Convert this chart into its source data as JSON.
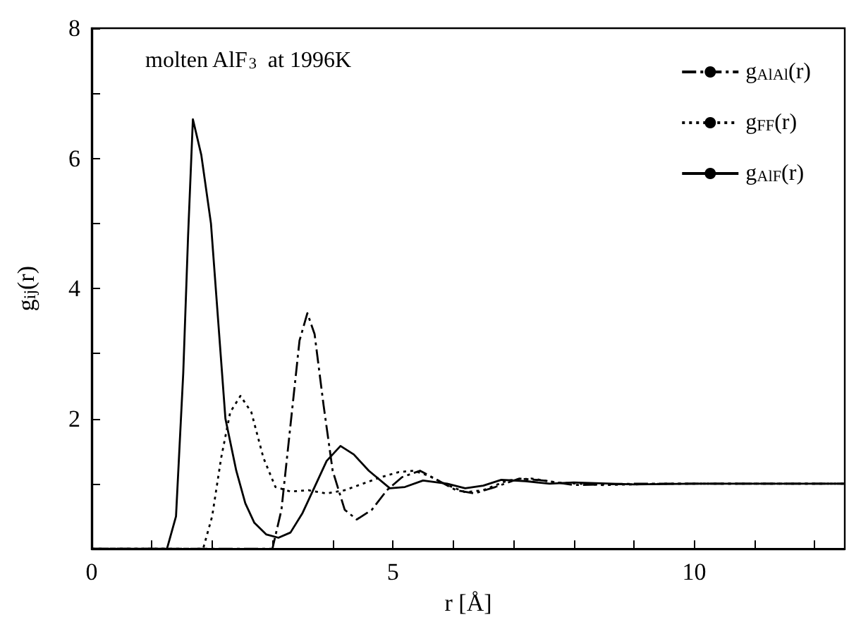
{
  "chart_data": {
    "type": "line",
    "title": "molten AlF$_{3}$  at 1996K",
    "xlabel": "r [Å]",
    "ylabel": "g$_{ij}$(r)",
    "xlim": [
      0,
      12.5
    ],
    "ylim": [
      0,
      8
    ],
    "xticks": [
      0,
      {
        "value": 1,
        "label": null
      },
      {
        "value": 2,
        "label": null
      },
      {
        "value": 3,
        "label": null
      },
      {
        "value": 4,
        "label": null
      },
      5,
      {
        "value": 6,
        "label": null
      },
      {
        "value": 7,
        "label": null
      },
      {
        "value": 8,
        "label": null
      },
      {
        "value": 9,
        "label": null
      },
      10,
      {
        "value": 11,
        "label": null
      },
      {
        "value": 12,
        "label": null
      }
    ],
    "yticks": [
      {
        "value": 0,
        "label": null
      },
      {
        "value": 1,
        "label": null
      },
      2,
      {
        "value": 3,
        "label": null
      },
      4,
      {
        "value": 5,
        "label": null
      },
      6,
      {
        "value": 7,
        "label": null
      },
      8
    ],
    "legend": "top right",
    "marker": "none",
    "grid": false,
    "series": [
      {
        "name": "g$_{AlAl}$(r)",
        "color": "#000000",
        "line_style": "dashdot",
        "x": [
          0,
          3.0,
          3.15,
          3.3,
          3.45,
          3.58,
          3.7,
          3.85,
          4.0,
          4.2,
          4.4,
          4.65,
          4.9,
          5.15,
          5.45,
          5.75,
          6.05,
          6.35,
          6.7,
          7.1,
          7.5,
          8,
          9,
          10,
          11,
          12.5
        ],
        "values": [
          0,
          0,
          0.6,
          1.9,
          3.2,
          3.62,
          3.3,
          2.2,
          1.2,
          0.6,
          0.45,
          0.6,
          0.9,
          1.1,
          1.2,
          1.05,
          0.9,
          0.85,
          0.95,
          1.08,
          1.05,
          0.98,
          1.0,
          1.0,
          1.0,
          1.0
        ]
      },
      {
        "name": "g$_{FF}$(r)",
        "color": "#000000",
        "line_style": "dotted",
        "x": [
          0,
          1.85,
          2.0,
          2.15,
          2.3,
          2.47,
          2.65,
          2.85,
          3.05,
          3.3,
          3.6,
          3.9,
          4.2,
          4.5,
          4.8,
          5.1,
          5.35,
          5.6,
          5.9,
          6.2,
          6.5,
          6.9,
          7.3,
          7.7,
          8.5,
          9.5,
          10.5,
          12.5
        ],
        "values": [
          0,
          0,
          0.5,
          1.4,
          2.1,
          2.35,
          2.1,
          1.4,
          0.95,
          0.88,
          0.9,
          0.85,
          0.9,
          1.0,
          1.1,
          1.18,
          1.2,
          1.12,
          0.98,
          0.87,
          0.9,
          1.05,
          1.08,
          1.02,
          0.98,
          1.0,
          1.0,
          1.0
        ]
      },
      {
        "name": "g$_{AlF}$(r)",
        "color": "#000000",
        "line_style": "solid",
        "x": [
          0,
          1.25,
          1.4,
          1.52,
          1.6,
          1.68,
          1.82,
          1.98,
          2.1,
          2.22,
          2.4,
          2.55,
          2.7,
          2.9,
          3.1,
          3.3,
          3.5,
          3.7,
          3.9,
          4.13,
          4.35,
          4.6,
          4.95,
          5.2,
          5.5,
          5.9,
          6.2,
          6.5,
          6.8,
          7.2,
          7.6,
          8,
          9,
          10,
          11,
          12.5
        ],
        "values": [
          0,
          0,
          0.5,
          2.7,
          4.8,
          6.6,
          6.05,
          5.0,
          3.5,
          2.0,
          1.2,
          0.7,
          0.4,
          0.22,
          0.17,
          0.25,
          0.55,
          0.95,
          1.35,
          1.58,
          1.45,
          1.2,
          0.93,
          0.95,
          1.05,
          1.0,
          0.93,
          0.97,
          1.06,
          1.04,
          1.0,
          1.02,
          0.99,
          1.0,
          1.0,
          1.0
        ]
      }
    ]
  }
}
